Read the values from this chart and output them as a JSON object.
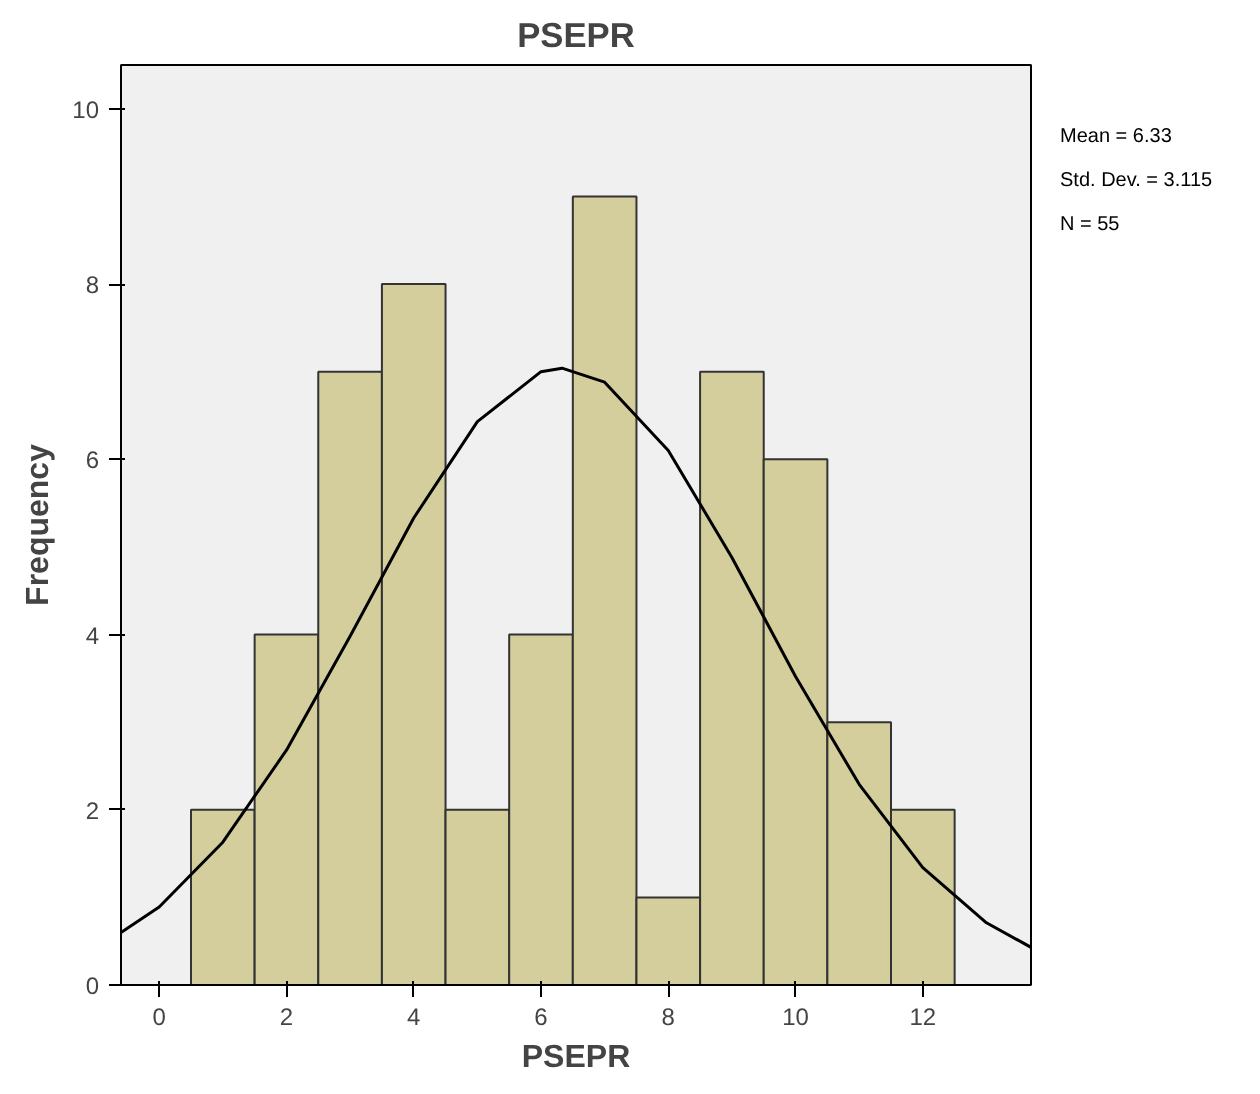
{
  "chart_data": {
    "type": "histogram",
    "title": "PSEPR",
    "xlabel": "PSEPR",
    "ylabel": "Frequency",
    "bins": [
      0.5,
      1.5,
      2.5,
      3.5,
      4.5,
      5.5,
      6.5,
      7.5,
      8.5,
      9.5,
      10.5,
      11.5,
      12.5
    ],
    "values": [
      2,
      4,
      7,
      8,
      2,
      4,
      9,
      1,
      7,
      6,
      3,
      2
    ],
    "color": "#d3ce9b",
    "series": [
      {
        "type": "line",
        "color": "#000000",
        "x": [
          -0.6,
          0,
          1,
          2,
          3,
          4,
          5,
          6,
          6.33,
          7,
          8,
          9,
          10,
          11,
          12,
          13,
          13.7
        ],
        "values": [
          0.6,
          0.89,
          1.63,
          2.68,
          3.98,
          5.33,
          6.43,
          7.0,
          7.04,
          6.88,
          6.1,
          4.88,
          3.52,
          2.29,
          1.34,
          0.71,
          0.43
        ]
      }
    ],
    "xlim": [
      -0.6,
      13.7
    ],
    "ylim": [
      0,
      10.5
    ],
    "xticks": [
      0,
      2,
      4,
      6,
      8,
      10,
      12
    ],
    "yticks": [
      0,
      2,
      4,
      6,
      8,
      10
    ],
    "grid": false,
    "annotations": [
      "Mean = 6.33",
      "Std. Dev. = 3.115",
      "N = 55"
    ]
  }
}
